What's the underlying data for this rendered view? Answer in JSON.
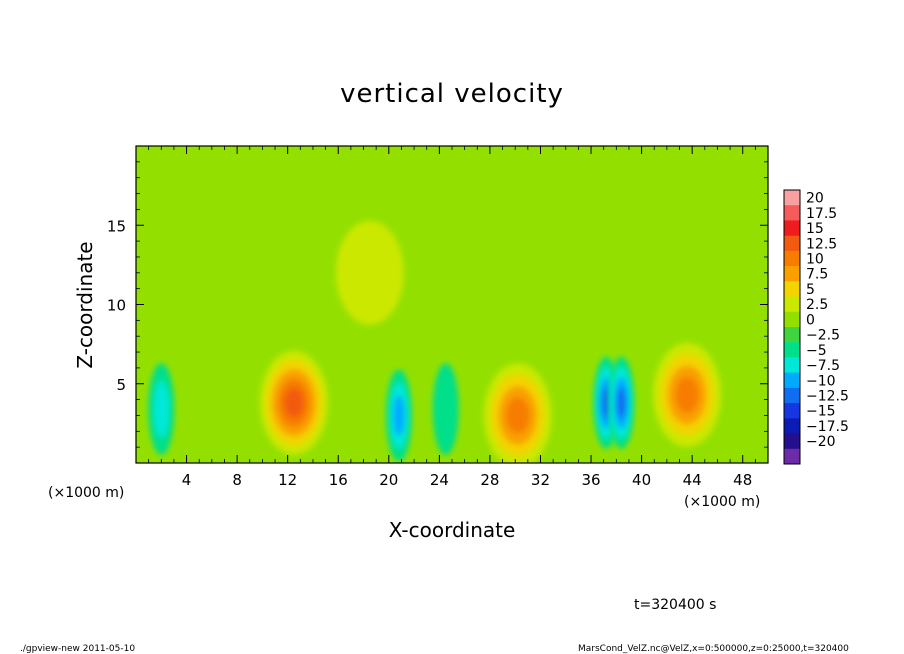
{
  "chart_data": {
    "type": "heatmap",
    "title": "vertical velocity",
    "xlabel": "X-coordinate",
    "ylabel": "Z-coordinate",
    "x_unit_left": "(×1000 m)",
    "x_unit_right": "(×1000 m)",
    "xlim": [
      0,
      50
    ],
    "ylim": [
      0,
      20
    ],
    "x_ticks": [
      4,
      8,
      12,
      16,
      20,
      24,
      28,
      32,
      36,
      40,
      44,
      48
    ],
    "y_ticks": [
      5,
      10,
      15
    ],
    "colorbar": {
      "labels": [
        "20",
        "17.5",
        "15",
        "12.5",
        "10",
        "7.5",
        "5",
        "2.5",
        "0",
        "−2.5",
        "−5",
        "−7.5",
        "−10",
        "−12.5",
        "−15",
        "−17.5",
        "−20"
      ],
      "levels": [
        20,
        17.5,
        15,
        12.5,
        10,
        7.5,
        5,
        2.5,
        0,
        -2.5,
        -5,
        -7.5,
        -10,
        -12.5,
        -15,
        -17.5,
        -20
      ],
      "colors": [
        "#f9a1a1",
        "#f45c5c",
        "#ee1c1c",
        "#f25a10",
        "#f77d00",
        "#f9a000",
        "#f3d300",
        "#cbe800",
        "#93e000",
        "#3ed53e",
        "#00df8a",
        "#00e8d8",
        "#00aaff",
        "#0f6df0",
        "#1537e2",
        "#0c1bb4",
        "#24108c",
        "#6d2ba8"
      ]
    },
    "background_value": 0.8,
    "features": [
      {
        "type": "updraft",
        "x": 12.5,
        "z": 3.8,
        "peak": 13
      },
      {
        "type": "updraft",
        "x": 30.2,
        "z": 3.0,
        "peak": 12
      },
      {
        "type": "updraft",
        "x": 43.6,
        "z": 4.3,
        "peak": 12
      },
      {
        "type": "downdraft",
        "x": 20.8,
        "z": 3.0,
        "peak": -9
      },
      {
        "type": "downdraft",
        "x": 37.2,
        "z": 3.8,
        "peak": -11
      },
      {
        "type": "downdraft",
        "x": 38.4,
        "z": 3.8,
        "peak": -12
      },
      {
        "type": "downdraft",
        "x": 2.0,
        "z": 3.4,
        "peak": -6
      },
      {
        "type": "downdraft",
        "x": 24.5,
        "z": 3.4,
        "peak": -4
      },
      {
        "type": "updraft",
        "x": 18.5,
        "z": 12.0,
        "peak": 3
      }
    ]
  },
  "footer": {
    "time": "t=320400 s",
    "left": "./gpview-new   2011-05-10",
    "right": "MarsCond_VelZ.nc@VelZ,x=0:500000,z=0:25000,t=320400"
  }
}
